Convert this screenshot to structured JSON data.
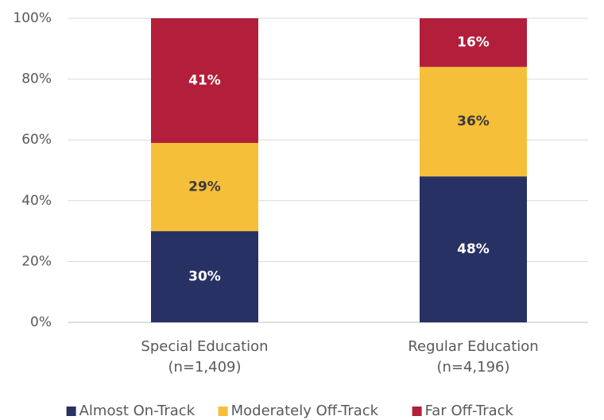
{
  "chart_data": {
    "type": "stacked_bar",
    "categories": [
      "Special Education\n(n=1,409)",
      "Regular Education\n(n=4,196)"
    ],
    "series": [
      {
        "name": "Almost On-Track",
        "color": "#283164",
        "label_color": "#ffffff",
        "values": [
          30,
          48
        ],
        "value_labels": [
          "30%",
          "48%"
        ]
      },
      {
        "name": "Moderately Off-Track",
        "color": "#f6bf3a",
        "label_color": "#3a3a3a",
        "values": [
          29,
          36
        ],
        "value_labels": [
          "29%",
          "36%"
        ]
      },
      {
        "name": "Far Off-Track",
        "color": "#b31f3a",
        "label_color": "#ffffff",
        "values": [
          41,
          16
        ],
        "value_labels": [
          "41%",
          "16%"
        ]
      }
    ],
    "ylim": [
      0,
      100
    ],
    "yticks": [
      {
        "value": 0,
        "label": "0%"
      },
      {
        "value": 20,
        "label": "20%"
      },
      {
        "value": 40,
        "label": "40%"
      },
      {
        "value": 60,
        "label": "60%"
      },
      {
        "value": 80,
        "label": "80%"
      },
      {
        "value": 100,
        "label": "100%"
      }
    ],
    "grid": true,
    "legend": "bottom"
  }
}
